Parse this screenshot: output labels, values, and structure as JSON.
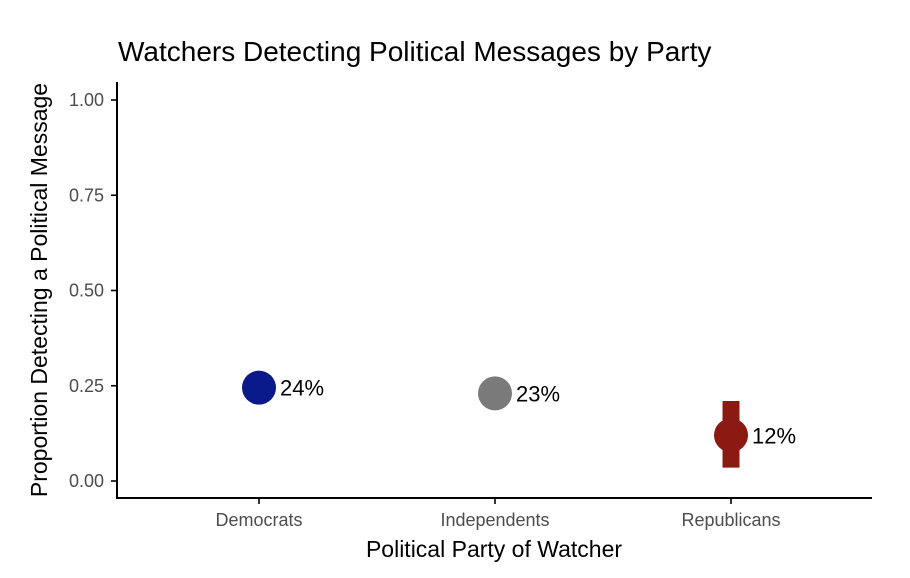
{
  "chart_data": {
    "type": "scatter",
    "title": "Watchers Detecting Political Messages by Party",
    "xlabel": "Political Party of Watcher",
    "ylabel": "Proportion Detecting a Political Message",
    "categories": [
      "Democrats",
      "Independents",
      "Republicans"
    ],
    "values": [
      0.245,
      0.23,
      0.12
    ],
    "error_low": [
      0.245,
      0.23,
      0.035
    ],
    "error_high": [
      0.245,
      0.23,
      0.21
    ],
    "data_labels": [
      "24%",
      "23%",
      "12%"
    ],
    "colors": [
      "#0a1a8a",
      "#7a7a7a",
      "#8b1a12"
    ],
    "ylim": [
      0,
      1
    ],
    "yticks": [
      0,
      0.25,
      0.5,
      0.75,
      1
    ],
    "ytick_labels": [
      "0.00",
      "0.25",
      "0.50",
      "0.75",
      "1.00"
    ],
    "grid": false,
    "legend": "none"
  }
}
